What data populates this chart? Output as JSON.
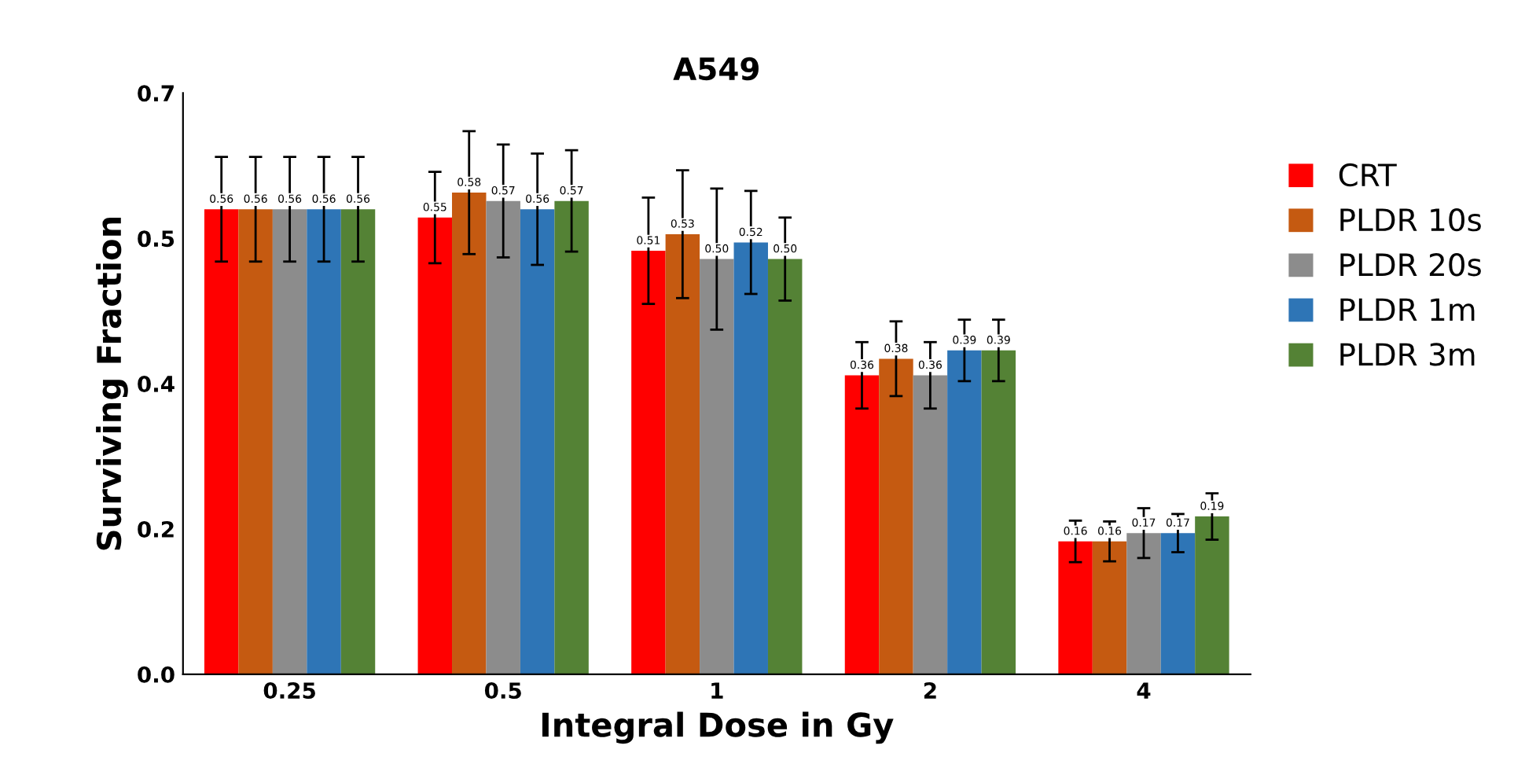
{
  "chart_data": {
    "type": "bar",
    "title": "A549",
    "xlabel": "Integral Dose in Gy",
    "ylabel": "Surviving Fraction",
    "categories": [
      "0.25",
      "0.5",
      "1",
      "2",
      "4"
    ],
    "ylim": [
      0,
      0.7
    ],
    "yticks": [
      {
        "value": 0,
        "label": "0.0"
      },
      {
        "value": 0.175,
        "label": "0.2"
      },
      {
        "value": 0.35,
        "label": "0.4"
      },
      {
        "value": 0.525,
        "label": "0.5"
      },
      {
        "value": 0.7,
        "label": "0.7"
      }
    ],
    "series": [
      {
        "name": "CRT",
        "color": "#ff0000",
        "values": [
          0.56,
          0.55,
          0.51,
          0.36,
          0.16
        ],
        "value_labels": [
          "0.56",
          "0.55",
          "0.51",
          "0.36",
          "0.16"
        ],
        "errors": [
          0.063,
          0.055,
          0.064,
          0.04,
          0.025
        ]
      },
      {
        "name": "PLDR 10s",
        "color": "#c55a11",
        "values": [
          0.56,
          0.58,
          0.53,
          0.38,
          0.16
        ],
        "value_labels": [
          "0.56",
          "0.58",
          "0.53",
          "0.38",
          "0.16"
        ],
        "errors": [
          0.063,
          0.074,
          0.077,
          0.045,
          0.024
        ]
      },
      {
        "name": "PLDR 20s",
        "color": "#8c8c8c",
        "values": [
          0.56,
          0.57,
          0.5,
          0.36,
          0.17
        ],
        "value_labels": [
          "0.56",
          "0.57",
          "0.50",
          "0.36",
          "0.17"
        ],
        "errors": [
          0.063,
          0.068,
          0.085,
          0.04,
          0.03
        ]
      },
      {
        "name": "PLDR 1m",
        "color": "#2e75b6",
        "values": [
          0.56,
          0.56,
          0.52,
          0.39,
          0.17
        ],
        "value_labels": [
          "0.56",
          "0.56",
          "0.52",
          "0.39",
          "0.17"
        ],
        "errors": [
          0.063,
          0.067,
          0.062,
          0.037,
          0.023
        ]
      },
      {
        "name": "PLDR 3m",
        "color": "#548235",
        "values": [
          0.56,
          0.57,
          0.5,
          0.39,
          0.19
        ],
        "value_labels": [
          "0.56",
          "0.57",
          "0.50",
          "0.39",
          "0.19"
        ],
        "errors": [
          0.063,
          0.061,
          0.05,
          0.037,
          0.028
        ]
      }
    ],
    "legend": "right",
    "grid": false
  }
}
